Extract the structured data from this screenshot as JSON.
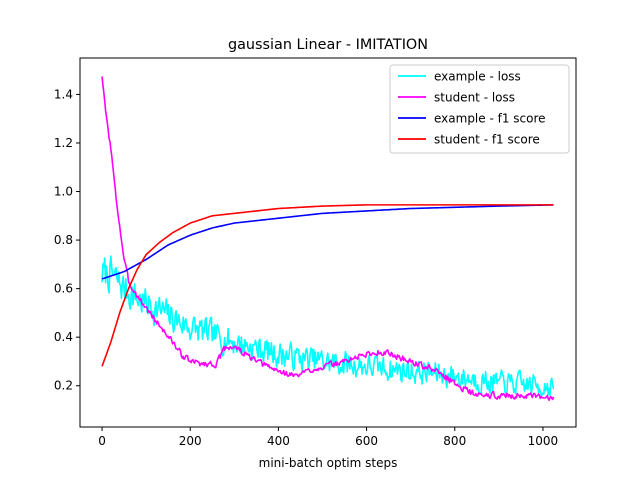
{
  "chart_data": {
    "type": "line",
    "title": "gaussian Linear - IMITATION",
    "xlabel": "mini-batch optim steps",
    "ylabel": "",
    "xlim": [
      -50,
      1075
    ],
    "ylim": [
      0.03,
      1.55
    ],
    "xticks": [
      0,
      200,
      400,
      600,
      800,
      1000
    ],
    "yticks": [
      0.2,
      0.4,
      0.6,
      0.8,
      1.0,
      1.2,
      1.4
    ],
    "grid": false,
    "legend_position": "top-right",
    "series": [
      {
        "name": "example - loss",
        "color": "#00ffff",
        "noisy": true,
        "noise_amp": 0.1,
        "seed": 7,
        "points": [
          [
            0,
            0.66
          ],
          [
            20,
            0.66
          ],
          [
            50,
            0.6
          ],
          [
            80,
            0.56
          ],
          [
            120,
            0.52
          ],
          [
            160,
            0.48
          ],
          [
            200,
            0.44
          ],
          [
            250,
            0.41
          ],
          [
            300,
            0.38
          ],
          [
            400,
            0.33
          ],
          [
            500,
            0.3
          ],
          [
            600,
            0.28
          ],
          [
            700,
            0.26
          ],
          [
            800,
            0.24
          ],
          [
            900,
            0.21
          ],
          [
            1000,
            0.2
          ],
          [
            1024,
            0.2
          ]
        ]
      },
      {
        "name": "student - loss",
        "color": "#ff00ff",
        "noisy": true,
        "noise_amp": 0.018,
        "seed": 3,
        "points": [
          [
            0,
            1.48
          ],
          [
            5,
            1.38
          ],
          [
            10,
            1.3
          ],
          [
            20,
            1.18
          ],
          [
            30,
            1.0
          ],
          [
            40,
            0.86
          ],
          [
            50,
            0.72
          ],
          [
            60,
            0.63
          ],
          [
            80,
            0.57
          ],
          [
            100,
            0.52
          ],
          [
            130,
            0.45
          ],
          [
            160,
            0.38
          ],
          [
            180,
            0.33
          ],
          [
            200,
            0.3
          ],
          [
            230,
            0.29
          ],
          [
            260,
            0.29
          ],
          [
            280,
            0.36
          ],
          [
            300,
            0.36
          ],
          [
            350,
            0.3
          ],
          [
            400,
            0.26
          ],
          [
            440,
            0.24
          ],
          [
            480,
            0.27
          ],
          [
            530,
            0.29
          ],
          [
            600,
            0.33
          ],
          [
            640,
            0.34
          ],
          [
            700,
            0.3
          ],
          [
            760,
            0.26
          ],
          [
            800,
            0.21
          ],
          [
            850,
            0.16
          ],
          [
            900,
            0.16
          ],
          [
            950,
            0.16
          ],
          [
            1000,
            0.15
          ],
          [
            1024,
            0.15
          ]
        ]
      },
      {
        "name": "example - f1 score",
        "color": "#0000ff",
        "noisy": false,
        "points": [
          [
            0,
            0.64
          ],
          [
            50,
            0.67
          ],
          [
            100,
            0.72
          ],
          [
            150,
            0.78
          ],
          [
            200,
            0.82
          ],
          [
            250,
            0.85
          ],
          [
            300,
            0.87
          ],
          [
            400,
            0.89
          ],
          [
            500,
            0.91
          ],
          [
            600,
            0.92
          ],
          [
            700,
            0.93
          ],
          [
            800,
            0.935
          ],
          [
            900,
            0.94
          ],
          [
            1024,
            0.945
          ]
        ]
      },
      {
        "name": "student - f1 score",
        "color": "#ff0000",
        "noisy": false,
        "points": [
          [
            0,
            0.28
          ],
          [
            20,
            0.38
          ],
          [
            40,
            0.5
          ],
          [
            60,
            0.6
          ],
          [
            80,
            0.68
          ],
          [
            100,
            0.74
          ],
          [
            130,
            0.79
          ],
          [
            160,
            0.83
          ],
          [
            200,
            0.87
          ],
          [
            250,
            0.9
          ],
          [
            300,
            0.91
          ],
          [
            400,
            0.93
          ],
          [
            500,
            0.94
          ],
          [
            600,
            0.945
          ],
          [
            800,
            0.945
          ],
          [
            1024,
            0.945
          ]
        ]
      }
    ]
  }
}
